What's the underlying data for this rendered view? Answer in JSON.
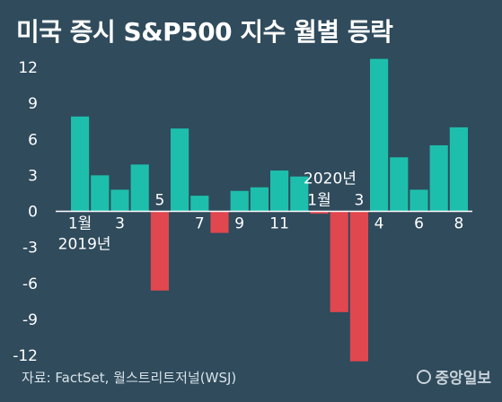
{
  "title": "미국 증시 S&P500 지수 월별 등락",
  "source": "자료: FactSet, 월스트리트저널(WSJ)",
  "logo": "중앙일보",
  "colors": {
    "background": "#2f4b5c",
    "positive": "#1dbfac",
    "negative": "#e0474f",
    "axis": "#ffffff"
  },
  "chart_data": {
    "type": "bar",
    "title": "미국 증시 S&P500 지수 월별 등락",
    "ylim": [
      -12,
      12
    ],
    "yticks": [
      12,
      9,
      6,
      3,
      0,
      -3,
      -6,
      -9,
      -12
    ],
    "categories": [
      "2019-01",
      "2019-02",
      "2019-03",
      "2019-04",
      "2019-05",
      "2019-06",
      "2019-07",
      "2019-08",
      "2019-09",
      "2019-10",
      "2019-11",
      "2019-12",
      "2020-01",
      "2020-02",
      "2020-03",
      "2020-04",
      "2020-05",
      "2020-06",
      "2020-07",
      "2020-08"
    ],
    "values": [
      7.9,
      3.0,
      1.8,
      3.9,
      -6.6,
      6.9,
      1.3,
      -1.8,
      1.7,
      2.0,
      3.4,
      2.9,
      -0.2,
      -8.4,
      -12.5,
      12.7,
      4.5,
      1.8,
      5.5,
      7.0
    ],
    "xtick_labels": [
      {
        "index": 0,
        "text": "1월"
      },
      {
        "index": 2,
        "text": "3"
      },
      {
        "index": 4,
        "text": "5"
      },
      {
        "index": 6,
        "text": "7"
      },
      {
        "index": 8,
        "text": "9"
      },
      {
        "index": 10,
        "text": "11"
      },
      {
        "index": 12,
        "text": "1월"
      },
      {
        "index": 14,
        "text": "3"
      },
      {
        "index": 15,
        "text": "4"
      },
      {
        "index": 17,
        "text": "6"
      },
      {
        "index": 19,
        "text": "8"
      }
    ],
    "year_labels": [
      {
        "index": 0,
        "text": "2019년"
      },
      {
        "index": 12,
        "text": "2020년"
      }
    ]
  }
}
